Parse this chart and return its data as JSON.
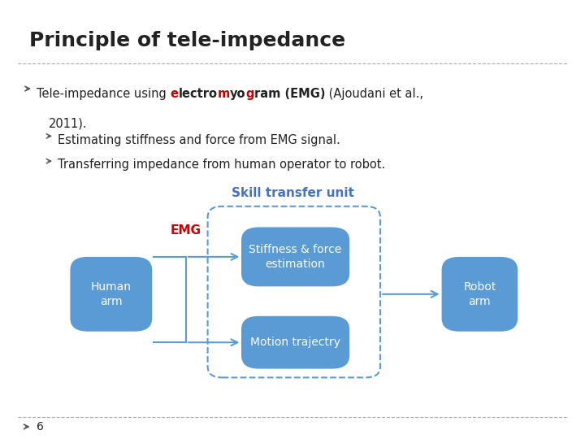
{
  "title": "Principle of tele-impedance",
  "background_color": "#ffffff",
  "bullet2": "Estimating stiffness and force from EMG signal.",
  "bullet3": "Transferring impedance from human operator to robot.",
  "diagram_title": "Skill transfer unit",
  "diagram_title_color": "#4472c4",
  "box_color": "#5b9bd5",
  "box_text_color": "#ffffff",
  "dashed_rect_color": "#5b9bd5",
  "emg_label_color": "#cc0000",
  "arrow_color": "#5b9bd5",
  "connector_color": "#5b9bd5",
  "footer_number": "6"
}
